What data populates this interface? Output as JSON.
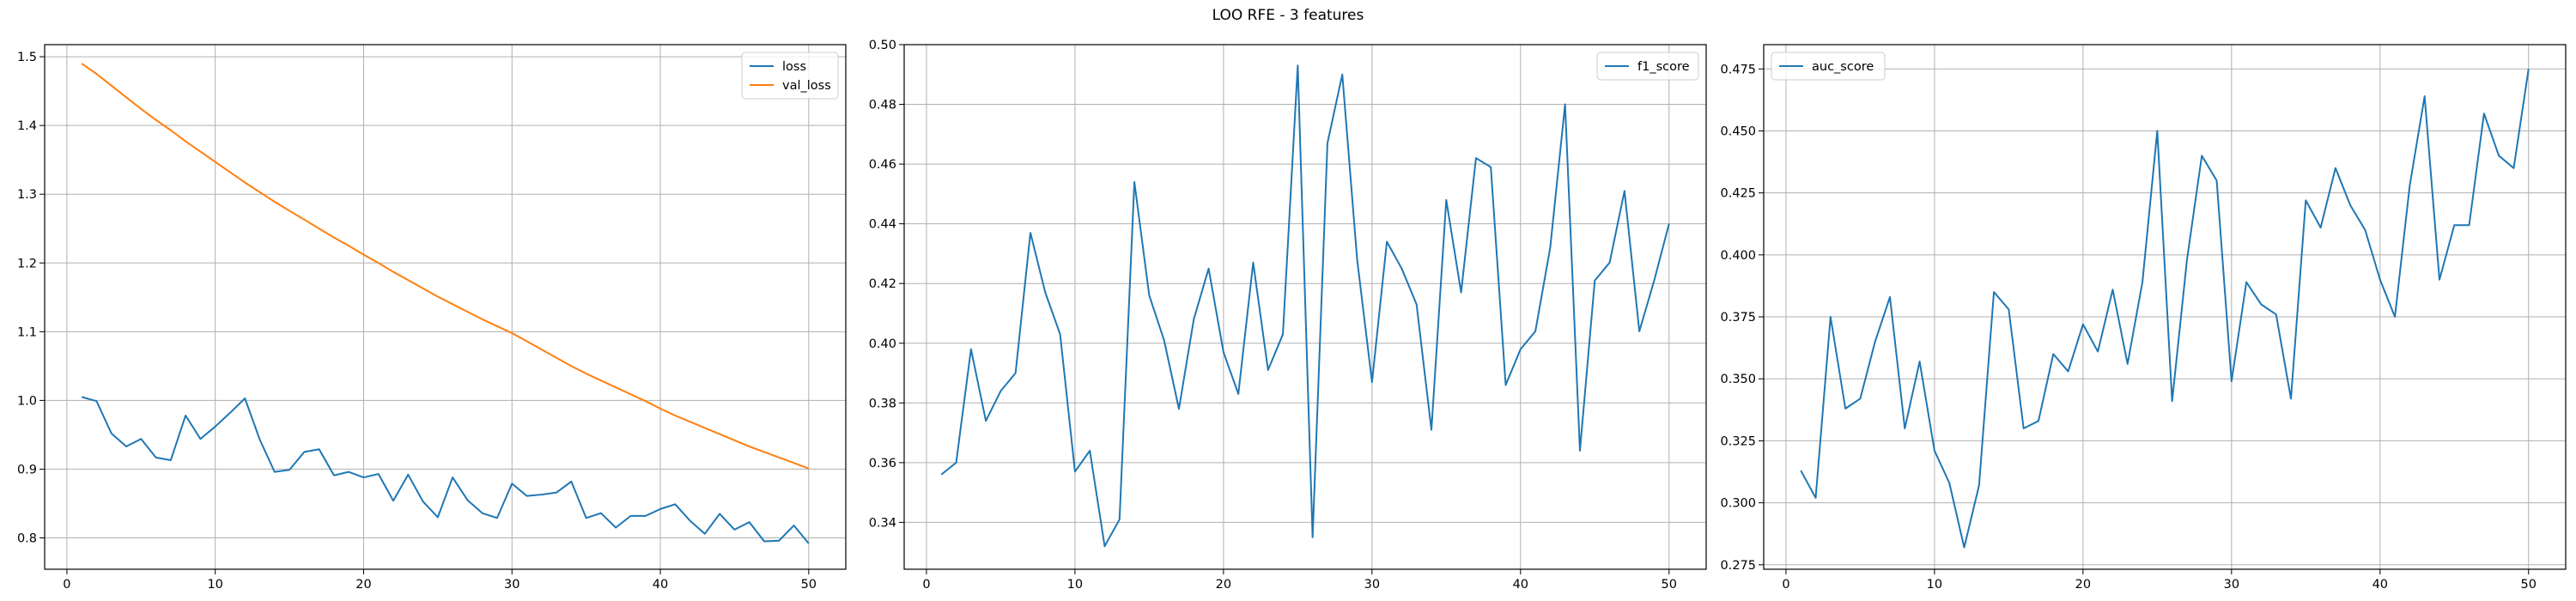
{
  "figure_title": "LOO RFE - 3 features",
  "colors": {
    "blue": "#1f77b4",
    "orange": "#ff7f0e",
    "grid": "#b0b0b0"
  },
  "chart_data": [
    {
      "type": "line",
      "title": "",
      "xlabel": "",
      "ylabel": "",
      "xlim": [
        -1.5,
        52.5
      ],
      "ylim": [
        0.7544,
        1.5176
      ],
      "xticks": [
        0,
        10,
        20,
        30,
        40,
        50
      ],
      "yticks": [
        0.8,
        0.9,
        1.0,
        1.1,
        1.2,
        1.3,
        1.4,
        1.5
      ],
      "ytick_labels": [
        "0.8",
        "0.9",
        "1.0",
        "1.1",
        "1.2",
        "1.3",
        "1.4",
        "1.5"
      ],
      "grid": true,
      "legend": "top-right",
      "x": [
        1,
        2,
        3,
        4,
        5,
        6,
        7,
        8,
        9,
        10,
        11,
        12,
        13,
        14,
        15,
        16,
        17,
        18,
        19,
        20,
        21,
        22,
        23,
        24,
        25,
        26,
        27,
        28,
        29,
        30,
        31,
        32,
        33,
        34,
        35,
        36,
        37,
        38,
        39,
        40,
        41,
        42,
        43,
        44,
        45,
        46,
        47,
        48,
        49,
        50
      ],
      "series": [
        {
          "name": "loss",
          "color": "#1f77b4",
          "values": [
            1.005,
            0.999,
            0.952,
            0.933,
            0.944,
            0.917,
            0.913,
            0.978,
            0.944,
            0.962,
            0.982,
            1.003,
            0.943,
            0.896,
            0.899,
            0.925,
            0.929,
            0.891,
            0.896,
            0.888,
            0.893,
            0.854,
            0.892,
            0.853,
            0.83,
            0.888,
            0.855,
            0.836,
            0.829,
            0.879,
            0.861,
            0.863,
            0.866,
            0.882,
            0.829,
            0.836,
            0.815,
            0.832,
            0.832,
            0.842,
            0.849,
            0.825,
            0.806,
            0.835,
            0.812,
            0.823,
            0.795,
            0.796,
            0.818,
            0.792
          ]
        },
        {
          "name": "val_loss",
          "color": "#ff7f0e",
          "values": [
            1.49,
            1.475,
            1.458,
            1.441,
            1.424,
            1.408,
            1.393,
            1.377,
            1.362,
            1.347,
            1.332,
            1.317,
            1.303,
            1.289,
            1.276,
            1.263,
            1.25,
            1.237,
            1.225,
            1.212,
            1.2,
            1.187,
            1.175,
            1.163,
            1.151,
            1.14,
            1.129,
            1.118,
            1.108,
            1.098,
            1.086,
            1.074,
            1.062,
            1.05,
            1.039,
            1.029,
            1.019,
            1.009,
            0.999,
            0.988,
            0.978,
            0.969,
            0.96,
            0.951,
            0.942,
            0.933,
            0.925,
            0.917,
            0.909,
            0.901
          ]
        }
      ]
    },
    {
      "type": "line",
      "title": "",
      "xlabel": "",
      "ylabel": "",
      "xlim": [
        -1.5,
        52.5
      ],
      "ylim": [
        0.3243,
        0.5
      ],
      "xticks": [
        0,
        10,
        20,
        30,
        40,
        50
      ],
      "yticks": [
        0.34,
        0.36,
        0.38,
        0.4,
        0.42,
        0.44,
        0.46,
        0.48,
        0.5
      ],
      "ytick_labels": [
        "0.34",
        "0.36",
        "0.38",
        "0.40",
        "0.42",
        "0.44",
        "0.46",
        "0.48",
        "0.50"
      ],
      "grid": true,
      "legend": "top-right",
      "x": [
        1,
        2,
        3,
        4,
        5,
        6,
        7,
        8,
        9,
        10,
        11,
        12,
        13,
        14,
        15,
        16,
        17,
        18,
        19,
        20,
        21,
        22,
        23,
        24,
        25,
        26,
        27,
        28,
        29,
        30,
        31,
        32,
        33,
        34,
        35,
        36,
        37,
        38,
        39,
        40,
        41,
        42,
        43,
        44,
        45,
        46,
        47,
        48,
        49,
        50
      ],
      "series": [
        {
          "name": "f1_score",
          "color": "#1f77b4",
          "values": [
            0.356,
            0.36,
            0.398,
            0.374,
            0.384,
            0.39,
            0.437,
            0.417,
            0.403,
            0.357,
            0.364,
            0.332,
            0.341,
            0.454,
            0.416,
            0.401,
            0.378,
            0.408,
            0.425,
            0.397,
            0.383,
            0.427,
            0.391,
            0.403,
            0.493,
            0.335,
            0.467,
            0.49,
            0.428,
            0.387,
            0.434,
            0.425,
            0.413,
            0.371,
            0.448,
            0.417,
            0.462,
            0.459,
            0.386,
            0.398,
            0.404,
            0.432,
            0.48,
            0.364,
            0.421,
            0.427,
            0.451,
            0.404,
            0.421,
            0.44
          ]
        }
      ]
    },
    {
      "type": "line",
      "title": "",
      "xlabel": "",
      "ylabel": "",
      "xlim": [
        -1.5,
        52.5
      ],
      "ylim": [
        0.2732,
        0.4848
      ],
      "xticks": [
        0,
        10,
        20,
        30,
        40,
        50
      ],
      "yticks": [
        0.275,
        0.3,
        0.325,
        0.35,
        0.375,
        0.4,
        0.425,
        0.45,
        0.475
      ],
      "ytick_labels": [
        "0.275",
        "0.300",
        "0.325",
        "0.350",
        "0.375",
        "0.400",
        "0.425",
        "0.450",
        "0.475"
      ],
      "grid": true,
      "legend": "top-left",
      "x": [
        1,
        2,
        3,
        4,
        5,
        6,
        7,
        8,
        9,
        10,
        11,
        12,
        13,
        14,
        15,
        16,
        17,
        18,
        19,
        20,
        21,
        22,
        23,
        24,
        25,
        26,
        27,
        28,
        29,
        30,
        31,
        32,
        33,
        34,
        35,
        36,
        37,
        38,
        39,
        40,
        41,
        42,
        43,
        44,
        45,
        46,
        47,
        48,
        49,
        50
      ],
      "series": [
        {
          "name": "auc_score",
          "color": "#1f77b4",
          "values": [
            0.313,
            0.302,
            0.375,
            0.338,
            0.342,
            0.365,
            0.383,
            0.33,
            0.357,
            0.321,
            0.308,
            0.282,
            0.307,
            0.385,
            0.378,
            0.33,
            0.333,
            0.36,
            0.353,
            0.372,
            0.361,
            0.386,
            0.356,
            0.389,
            0.45,
            0.341,
            0.398,
            0.44,
            0.43,
            0.349,
            0.389,
            0.38,
            0.376,
            0.342,
            0.422,
            0.411,
            0.435,
            0.42,
            0.41,
            0.39,
            0.375,
            0.428,
            0.464,
            0.39,
            0.412,
            0.412,
            0.457,
            0.44,
            0.435,
            0.475
          ]
        }
      ]
    }
  ]
}
